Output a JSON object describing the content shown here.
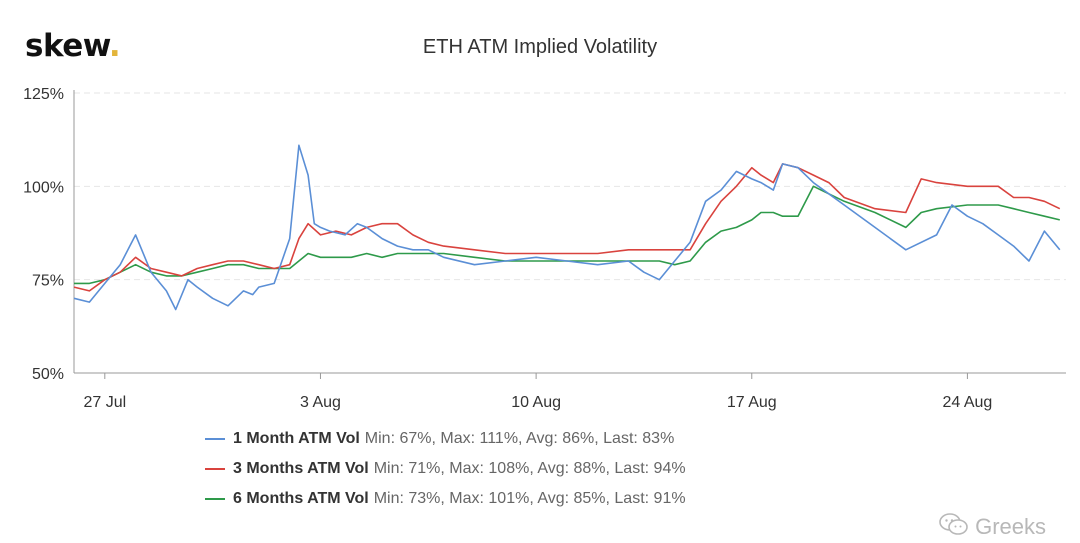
{
  "brand": {
    "name": "skew",
    "dot": "."
  },
  "watermark": "Greeks",
  "colors": {
    "series1": "#5b8fd6",
    "series2": "#d9433e",
    "series3": "#2e9a4a",
    "grid": "#e6e6e6",
    "axis": "#999999"
  },
  "chart_data": {
    "type": "line",
    "title": "ETH ATM Implied Volatility",
    "y_ticks": [
      "125%",
      "100%",
      "75%",
      "50%"
    ],
    "y_tick_values": [
      125,
      100,
      75,
      50
    ],
    "ylim": [
      50,
      125
    ],
    "x_ticks": [
      "27 Jul",
      "3 Aug",
      "10 Aug",
      "17 Aug",
      "24 Aug"
    ],
    "x_tick_values": [
      1.0,
      8.0,
      15.0,
      22.0,
      29.0
    ],
    "xlim": [
      0.0,
      32.2
    ],
    "grid": "horizontal dashed",
    "legend_position": "bottom",
    "series": [
      {
        "name": "1 Month ATM Vol",
        "stats": "Min: 67%, Max: 111%, Avg: 86%, Last: 83%",
        "x": [
          0.0,
          0.5,
          1.0,
          1.5,
          2.0,
          2.5,
          3.0,
          3.3,
          3.7,
          4.0,
          4.5,
          5.0,
          5.5,
          5.8,
          6.0,
          6.5,
          7.0,
          7.3,
          7.6,
          7.8,
          8.0,
          8.3,
          8.8,
          9.2,
          9.5,
          10.0,
          10.5,
          11.0,
          11.5,
          12.0,
          13.0,
          14.0,
          15.0,
          16.0,
          17.0,
          18.0,
          18.5,
          19.0,
          19.5,
          20.0,
          20.5,
          21.0,
          21.5,
          22.0,
          22.3,
          22.7,
          23.0,
          23.5,
          24.0,
          24.5,
          25.0,
          26.0,
          27.0,
          28.0,
          28.5,
          29.0,
          29.5,
          30.0,
          30.5,
          31.0,
          31.5,
          32.0
        ],
        "y": [
          70,
          69,
          74,
          79,
          87,
          77,
          72,
          67,
          75,
          73,
          70,
          68,
          72,
          71,
          73,
          74,
          86,
          111,
          103,
          90,
          89,
          88,
          87,
          90,
          89,
          86,
          84,
          83,
          83,
          81,
          79,
          80,
          81,
          80,
          79,
          80,
          77,
          75,
          80,
          85,
          96,
          99,
          104,
          102,
          101,
          99,
          106,
          105,
          101,
          98,
          95,
          89,
          83,
          87,
          95,
          92,
          90,
          87,
          84,
          80,
          88,
          83
        ]
      },
      {
        "name": "3 Months ATM Vol",
        "stats": "Min: 71%, Max: 108%, Avg: 88%, Last: 94%",
        "x": [
          0.0,
          0.5,
          1.0,
          1.5,
          2.0,
          2.5,
          3.0,
          3.5,
          4.0,
          4.5,
          5.0,
          5.5,
          6.0,
          6.5,
          7.0,
          7.3,
          7.6,
          8.0,
          8.5,
          9.0,
          9.5,
          10.0,
          10.5,
          11.0,
          11.5,
          12.0,
          13.0,
          14.0,
          15.0,
          16.0,
          17.0,
          18.0,
          19.0,
          19.5,
          20.0,
          20.5,
          21.0,
          21.5,
          22.0,
          22.3,
          22.7,
          23.0,
          23.5,
          24.0,
          24.5,
          25.0,
          26.0,
          27.0,
          27.5,
          28.0,
          29.0,
          30.0,
          30.5,
          31.0,
          31.5,
          32.0
        ],
        "y": [
          73,
          72,
          75,
          77,
          81,
          78,
          77,
          76,
          78,
          79,
          80,
          80,
          79,
          78,
          79,
          86,
          90,
          87,
          88,
          87,
          89,
          90,
          90,
          87,
          85,
          84,
          83,
          82,
          82,
          82,
          82,
          83,
          83,
          83,
          83,
          90,
          96,
          100,
          105,
          103,
          101,
          106,
          105,
          103,
          101,
          97,
          94,
          93,
          102,
          101,
          100,
          100,
          97,
          97,
          96,
          94
        ]
      },
      {
        "name": "6 Months ATM Vol",
        "stats": "Min: 73%, Max: 101%, Avg: 85%, Last: 91%",
        "x": [
          0.0,
          0.5,
          1.0,
          1.5,
          2.0,
          2.5,
          3.0,
          3.5,
          4.0,
          4.5,
          5.0,
          5.5,
          6.0,
          6.5,
          7.0,
          7.3,
          7.6,
          8.0,
          8.5,
          9.0,
          9.5,
          10.0,
          10.5,
          11.0,
          11.5,
          12.0,
          13.0,
          14.0,
          15.0,
          16.0,
          17.0,
          18.0,
          19.0,
          19.5,
          20.0,
          20.5,
          21.0,
          21.5,
          22.0,
          22.3,
          22.7,
          23.0,
          23.5,
          24.0,
          24.5,
          25.0,
          26.0,
          27.0,
          27.5,
          28.0,
          29.0,
          30.0,
          30.5,
          31.0,
          31.5,
          32.0
        ],
        "y": [
          74,
          74,
          75,
          77,
          79,
          77,
          76,
          76,
          77,
          78,
          79,
          79,
          78,
          78,
          78,
          80,
          82,
          81,
          81,
          81,
          82,
          81,
          82,
          82,
          82,
          82,
          81,
          80,
          80,
          80,
          80,
          80,
          80,
          79,
          80,
          85,
          88,
          89,
          91,
          93,
          93,
          92,
          92,
          100,
          98,
          96,
          93,
          89,
          93,
          94,
          95,
          95,
          94,
          93,
          92,
          91
        ]
      }
    ]
  }
}
